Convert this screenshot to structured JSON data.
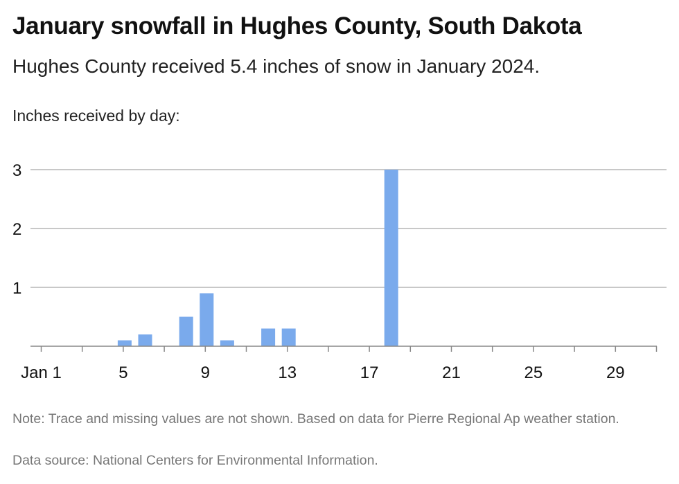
{
  "header": {
    "title": "January snowfall in Hughes County, South Dakota",
    "subtitle": "Hughes County received 5.4 inches of snow in January 2024.",
    "axis_caption": "Inches received by day:"
  },
  "footer": {
    "note": "Note: Trace and missing values are not shown. Based on data for Pierre Regional Ap weather station.",
    "source": "Data source: National Centers for Environmental Information."
  },
  "chart_data": {
    "type": "bar",
    "title": "January snowfall in Hughes County, South Dakota",
    "subtitle": "Hughes County received 5.4 inches of snow in January 2024.",
    "ylabel": "Inches received by day:",
    "xlabel": "",
    "x": [
      1,
      2,
      3,
      4,
      5,
      6,
      7,
      8,
      9,
      10,
      11,
      12,
      13,
      14,
      15,
      16,
      17,
      18,
      19,
      20,
      21,
      22,
      23,
      24,
      25,
      26,
      27,
      28,
      29,
      30,
      31
    ],
    "values": [
      0,
      0,
      0,
      0,
      0.1,
      0.2,
      0,
      0.5,
      0.9,
      0.1,
      0,
      0.3,
      0.3,
      0,
      0,
      0,
      0,
      3.0,
      0,
      0,
      0,
      0,
      0,
      0,
      0,
      0,
      0,
      0,
      0,
      0,
      0
    ],
    "ylim": [
      0,
      3
    ],
    "yticks": [
      1,
      2,
      3
    ],
    "xticks": [
      1,
      5,
      9,
      13,
      17,
      21,
      25,
      29
    ],
    "xtick_labels": [
      "Jan 1",
      "5",
      "9",
      "13",
      "17",
      "21",
      "25",
      "29"
    ],
    "grid": true,
    "bar_color": "#7aaaec",
    "grid_color": "#b5b5b5"
  }
}
